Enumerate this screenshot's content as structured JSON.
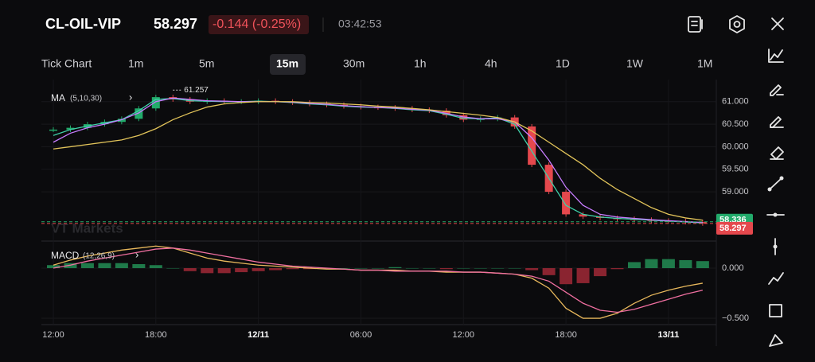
{
  "header": {
    "symbol": "CL-OIL-VIP",
    "price": "58.297",
    "change": "-0.144 (-0.25%)",
    "time": "03:42:53"
  },
  "timeframes": [
    "Tick Chart",
    "1m",
    "5m",
    "15m",
    "30m",
    "1h",
    "4h",
    "1D",
    "1W",
    "1M"
  ],
  "selected_timeframe": 3,
  "chart_data": {
    "type": "candlestick",
    "watermark": "VT Markets",
    "categories": [
      "12:00",
      null,
      null,
      null,
      null,
      null,
      "18:00",
      null,
      null,
      null,
      null,
      null,
      "12/11",
      null,
      null,
      null,
      null,
      null,
      "06:00",
      null,
      null,
      null,
      null,
      null,
      "12:00",
      null,
      null,
      null,
      null,
      null,
      "18:00",
      null,
      null,
      null,
      null,
      null,
      "13/11",
      null,
      null
    ],
    "close": [
      60.38,
      60.42,
      60.5,
      60.55,
      60.62,
      60.85,
      61.1,
      61.05,
      61.0,
      61.02,
      61.0,
      61.0,
      61.02,
      61.0,
      60.98,
      60.95,
      60.93,
      60.9,
      60.88,
      60.87,
      60.85,
      60.82,
      60.8,
      60.7,
      60.6,
      60.62,
      60.65,
      60.45,
      59.6,
      59.0,
      58.5,
      58.45,
      58.42,
      58.4,
      58.38,
      58.36,
      58.35,
      58.33,
      58.3
    ],
    "up_color": "#22ab6b",
    "down_color": "#e5484d",
    "high": 61.257,
    "high_index": 7,
    "ma": {
      "label": "MA",
      "params": "(5,10,30)",
      "series": [
        {
          "color": "#3fd0a8",
          "values": [
            60.25,
            60.38,
            60.46,
            60.53,
            60.6,
            60.8,
            61.05,
            61.07,
            61.02,
            61.01,
            61.0,
            61.0,
            61.01,
            61.0,
            60.98,
            60.95,
            60.93,
            60.9,
            60.88,
            60.87,
            60.85,
            60.82,
            60.8,
            60.72,
            60.63,
            60.62,
            60.64,
            60.5,
            59.9,
            59.3,
            58.7,
            58.5,
            58.44,
            58.41,
            58.39,
            58.37,
            58.35,
            58.33,
            58.31
          ]
        },
        {
          "color": "#c77dff",
          "values": [
            60.1,
            60.3,
            60.42,
            60.5,
            60.6,
            60.75,
            61.0,
            61.08,
            61.05,
            61.02,
            61.01,
            61.0,
            61.0,
            61.0,
            60.99,
            60.96,
            60.94,
            60.91,
            60.89,
            60.87,
            60.86,
            60.83,
            60.81,
            60.74,
            60.66,
            60.62,
            60.62,
            60.55,
            60.2,
            59.7,
            59.1,
            58.7,
            58.5,
            58.44,
            58.41,
            58.38,
            58.36,
            58.34,
            58.32
          ]
        },
        {
          "color": "#e2c45a",
          "values": [
            59.95,
            60.0,
            60.05,
            60.1,
            60.15,
            60.25,
            60.4,
            60.6,
            60.75,
            60.88,
            60.95,
            60.98,
            61.0,
            61.0,
            61.0,
            60.98,
            60.97,
            60.95,
            60.93,
            60.9,
            60.88,
            60.85,
            60.82,
            60.78,
            60.74,
            60.7,
            60.65,
            60.55,
            60.35,
            60.1,
            59.85,
            59.6,
            59.3,
            59.05,
            58.85,
            58.65,
            58.5,
            58.42,
            58.37
          ]
        }
      ]
    },
    "ylim": [
      57.96,
      61.49
    ],
    "yticks": [
      {
        "value": 61,
        "label": "61.000"
      },
      {
        "value": 60.5,
        "label": "60.500"
      },
      {
        "value": 60,
        "label": "60.000"
      },
      {
        "value": 59.5,
        "label": "59.500"
      },
      {
        "value": 59,
        "label": "59.000"
      }
    ],
    "last_prices": [
      {
        "value": 58.336,
        "color": "#22ab6b"
      },
      {
        "value": 58.297,
        "color": "#e5484d"
      }
    ],
    "macd": {
      "label": "MACD",
      "params": "(12,26,9)",
      "ylim": [
        -0.563,
        0.254
      ],
      "yticks": [
        {
          "value": 0,
          "label": "0.000"
        },
        {
          "value": -0.5,
          "label": "−0.500"
        }
      ],
      "dif": {
        "color": "#e8b85c",
        "values": [
          0.03,
          0.08,
          0.12,
          0.15,
          0.18,
          0.2,
          0.22,
          0.2,
          0.15,
          0.1,
          0.07,
          0.05,
          0.03,
          0.02,
          0.01,
          0.0,
          -0.01,
          -0.01,
          -0.02,
          -0.02,
          -0.02,
          -0.03,
          -0.03,
          -0.04,
          -0.04,
          -0.04,
          -0.05,
          -0.06,
          -0.1,
          -0.2,
          -0.4,
          -0.5,
          -0.5,
          -0.45,
          -0.35,
          -0.27,
          -0.22,
          -0.18,
          -0.15
        ]
      },
      "dea": {
        "color": "#f06fa0",
        "values": [
          0.0,
          0.03,
          0.07,
          0.1,
          0.13,
          0.16,
          0.19,
          0.2,
          0.18,
          0.15,
          0.12,
          0.09,
          0.06,
          0.04,
          0.02,
          0.01,
          0.0,
          -0.01,
          -0.02,
          -0.02,
          -0.03,
          -0.03,
          -0.03,
          -0.03,
          -0.04,
          -0.04,
          -0.05,
          -0.06,
          -0.08,
          -0.13,
          -0.24,
          -0.35,
          -0.42,
          -0.44,
          -0.41,
          -0.36,
          -0.31,
          -0.26,
          -0.22
        ]
      },
      "hist": {
        "up_color": "#1f7a4a",
        "down_color": "#8a2430",
        "values": [
          0.03,
          0.05,
          0.05,
          0.05,
          0.05,
          0.04,
          0.03,
          0.0,
          -0.03,
          -0.05,
          -0.05,
          -0.04,
          -0.03,
          -0.02,
          -0.01,
          -0.01,
          -0.01,
          0.0,
          0.0,
          0.0,
          0.01,
          0.0,
          0.0,
          -0.01,
          0.0,
          0.0,
          0.0,
          0.0,
          -0.02,
          -0.07,
          -0.16,
          -0.15,
          -0.08,
          -0.01,
          0.06,
          0.09,
          0.09,
          0.08,
          0.07
        ]
      }
    }
  }
}
